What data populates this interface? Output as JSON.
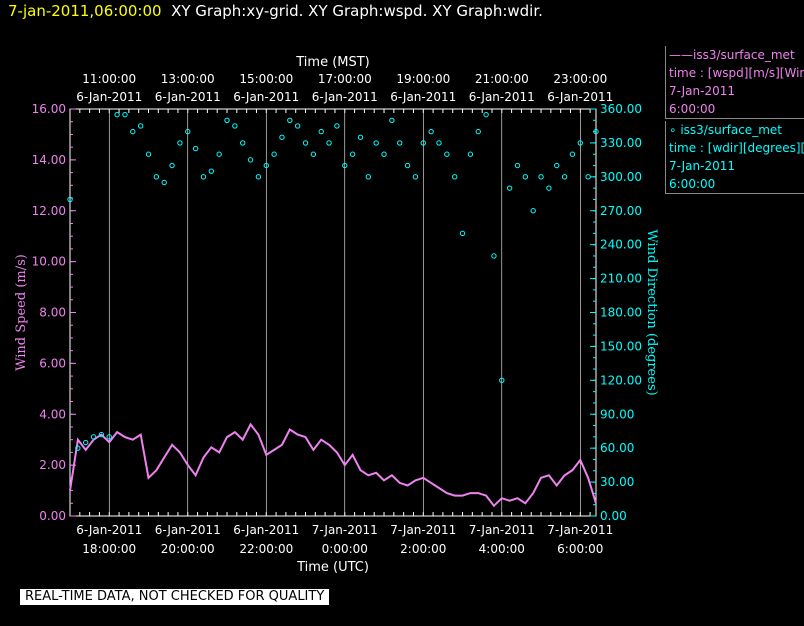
{
  "header": {
    "date": "7-jan-2011,06:00:00",
    "titles": "XY Graph:xy-grid.  XY Graph:wspd.  XY Graph:wdir."
  },
  "legend": {
    "wspd": {
      "line1": "——iss3/surface_met",
      "line2": "time : [wspd][m/s][Wind",
      "line3": "7-Jan-2011",
      "line4": "6:00:00"
    },
    "wdir": {
      "line1": "∘ iss3/surface_met",
      "line2": "time : [wdir][degrees][W",
      "line3": "7-Jan-2011",
      "line4": "6:00:00"
    }
  },
  "disclaimer": "REAL-TIME DATA, NOT CHECKED FOR QUALITY",
  "colors": {
    "wspd": "#ee82ee",
    "wdir": "#00ffff",
    "background": "#000000",
    "grid": "#ffffff"
  },
  "chart_data": {
    "type": "line",
    "top_axis_title": "Time (MST)",
    "bottom_axis_title": "Time (UTC)",
    "ylabel_left": "Wind Speed (m/s)",
    "ylabel_right": "Wind Direction (degrees)",
    "xlim": [
      17.0,
      30.4
    ],
    "ylim_left": [
      0,
      16
    ],
    "ylim_right": [
      0,
      360
    ],
    "grid": "vertical",
    "top_ticks": [
      {
        "x": 18,
        "time": "11:00:00",
        "date": "6-Jan-2011"
      },
      {
        "x": 20,
        "time": "13:00:00",
        "date": "6-Jan-2011"
      },
      {
        "x": 22,
        "time": "15:00:00",
        "date": "6-Jan-2011"
      },
      {
        "x": 24,
        "time": "17:00:00",
        "date": "6-Jan-2011"
      },
      {
        "x": 26,
        "time": "19:00:00",
        "date": "6-Jan-2011"
      },
      {
        "x": 28,
        "time": "21:00:00",
        "date": "6-Jan-2011"
      },
      {
        "x": 30,
        "time": "23:00:00",
        "date": "6-Jan-2011"
      }
    ],
    "bottom_ticks": [
      {
        "x": 18,
        "date": "6-Jan-2011",
        "time": "18:00:00"
      },
      {
        "x": 20,
        "date": "6-Jan-2011",
        "time": "20:00:00"
      },
      {
        "x": 22,
        "date": "6-Jan-2011",
        "time": "22:00:00"
      },
      {
        "x": 24,
        "date": "7-Jan-2011",
        "time": "0:00:00"
      },
      {
        "x": 26,
        "date": "7-Jan-2011",
        "time": "2:00:00"
      },
      {
        "x": 28,
        "date": "7-Jan-2011",
        "time": "4:00:00"
      },
      {
        "x": 30,
        "date": "7-Jan-2011",
        "time": "6:00:00"
      }
    ],
    "left_ticks": [
      "0.00",
      "2.00",
      "4.00",
      "6.00",
      "8.00",
      "10.00",
      "12.00",
      "14.00",
      "16.00"
    ],
    "right_ticks": [
      "0.00",
      "30.00",
      "60.00",
      "90.00",
      "120.00",
      "150.00",
      "180.00",
      "210.00",
      "240.00",
      "270.00",
      "300.00",
      "330.00",
      "360.00"
    ],
    "series": [
      {
        "key": "wspd",
        "style": "line",
        "x": [
          17.0,
          17.2,
          17.4,
          17.6,
          17.8,
          18.0,
          18.2,
          18.4,
          18.6,
          18.8,
          19.0,
          19.2,
          19.4,
          19.6,
          19.8,
          20.0,
          20.2,
          20.4,
          20.6,
          20.8,
          21.0,
          21.2,
          21.4,
          21.6,
          21.8,
          22.0,
          22.2,
          22.4,
          22.6,
          22.8,
          23.0,
          23.2,
          23.4,
          23.6,
          23.8,
          24.0,
          24.2,
          24.4,
          24.6,
          24.8,
          25.0,
          25.2,
          25.4,
          25.6,
          25.8,
          26.0,
          26.2,
          26.4,
          26.6,
          26.8,
          27.0,
          27.2,
          27.4,
          27.6,
          27.8,
          28.0,
          28.2,
          28.4,
          28.6,
          28.8,
          29.0,
          29.2,
          29.4,
          29.6,
          29.8,
          30.0,
          30.2,
          30.4
        ],
        "y": [
          1.0,
          3.0,
          2.6,
          3.0,
          3.2,
          2.9,
          3.3,
          3.1,
          3.0,
          3.2,
          1.5,
          1.8,
          2.3,
          2.8,
          2.5,
          2.0,
          1.6,
          2.3,
          2.7,
          2.5,
          3.1,
          3.3,
          3.0,
          3.6,
          3.2,
          2.4,
          2.6,
          2.8,
          3.4,
          3.2,
          3.1,
          2.6,
          3.0,
          2.8,
          2.5,
          2.0,
          2.4,
          1.8,
          1.6,
          1.7,
          1.4,
          1.6,
          1.3,
          1.2,
          1.4,
          1.5,
          1.3,
          1.1,
          0.9,
          0.8,
          0.8,
          0.9,
          0.9,
          0.8,
          0.4,
          0.7,
          0.6,
          0.7,
          0.5,
          0.9,
          1.5,
          1.6,
          1.2,
          1.6,
          1.8,
          2.2,
          1.5,
          0.5
        ]
      },
      {
        "key": "wdir",
        "style": "points",
        "x": [
          17.0,
          17.2,
          17.4,
          17.6,
          17.8,
          18.0,
          18.2,
          18.4,
          18.6,
          18.8,
          19.0,
          19.2,
          19.4,
          19.6,
          19.8,
          20.0,
          20.2,
          20.4,
          20.6,
          20.8,
          21.0,
          21.2,
          21.4,
          21.6,
          21.8,
          22.0,
          22.2,
          22.4,
          22.6,
          22.8,
          23.0,
          23.2,
          23.4,
          23.6,
          23.8,
          24.0,
          24.2,
          24.4,
          24.6,
          24.8,
          25.0,
          25.2,
          25.4,
          25.6,
          25.8,
          26.0,
          26.2,
          26.4,
          26.6,
          26.8,
          27.0,
          27.2,
          27.4,
          27.6,
          27.8,
          28.0,
          28.2,
          28.4,
          28.6,
          28.8,
          29.0,
          29.2,
          29.4,
          29.6,
          29.8,
          30.0,
          30.2,
          30.4
        ],
        "y": [
          280,
          60,
          65,
          70,
          72,
          70,
          355,
          355,
          340,
          345,
          320,
          300,
          295,
          310,
          330,
          340,
          325,
          300,
          305,
          320,
          350,
          345,
          330,
          315,
          300,
          310,
          320,
          335,
          350,
          345,
          330,
          320,
          340,
          330,
          345,
          310,
          320,
          335,
          300,
          330,
          320,
          350,
          330,
          310,
          300,
          330,
          340,
          330,
          320,
          300,
          250,
          320,
          340,
          355,
          230,
          120,
          290,
          310,
          300,
          270,
          300,
          290,
          310,
          300,
          320,
          330,
          300,
          340
        ]
      }
    ]
  }
}
